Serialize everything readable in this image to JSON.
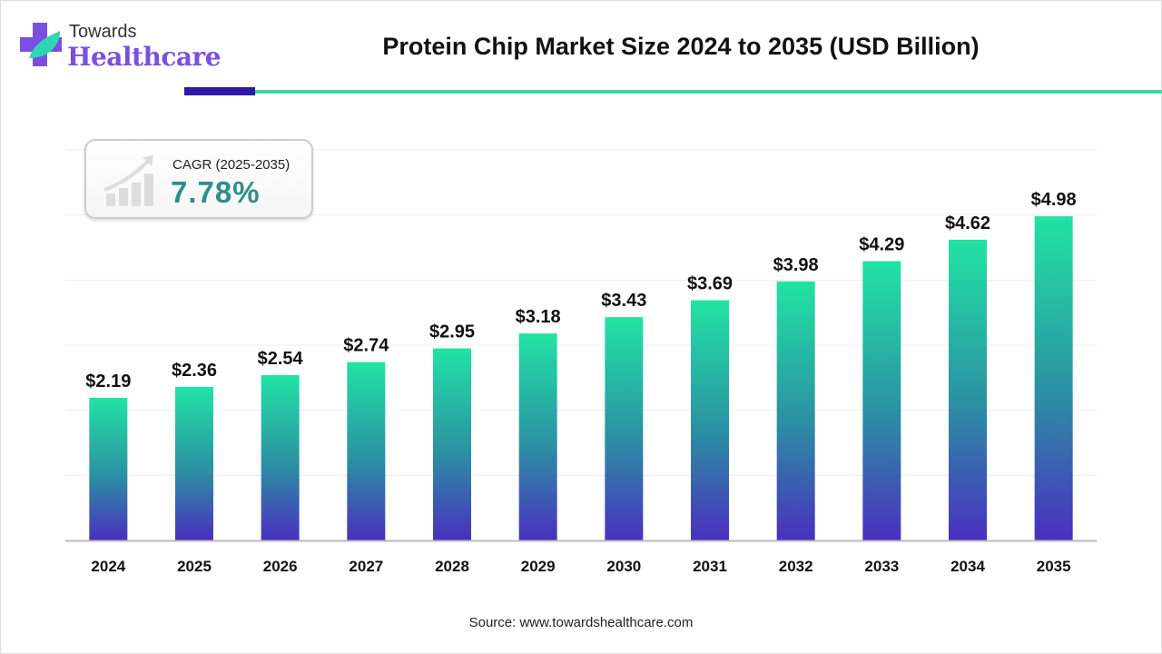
{
  "logo": {
    "line1": "Towards",
    "line2": "Healthcare"
  },
  "colors": {
    "bar_top": "#22e3a4",
    "bar_mid": "#2b8fa3",
    "bar_bottom": "#4a2fbf",
    "accent_dark": "#2f1aa8",
    "accent_green": "#3dd6a0",
    "cagr_value": "#2e8f88"
  },
  "cagr": {
    "label": "CAGR (2025-2035)",
    "value": "7.78%",
    "icon": "growth-chart-arrow-icon"
  },
  "source": "Source: www.towardshealthcare.com",
  "chart_data": {
    "type": "bar",
    "title": "Protein Chip Market Size 2024 to 2035 (USD Billion)",
    "xlabel": "",
    "ylabel": "",
    "categories": [
      "2024",
      "2025",
      "2026",
      "2027",
      "2028",
      "2029",
      "2030",
      "2031",
      "2032",
      "2033",
      "2034",
      "2035"
    ],
    "values": [
      2.19,
      2.36,
      2.54,
      2.74,
      2.95,
      3.18,
      3.43,
      3.69,
      3.98,
      4.29,
      4.62,
      4.98
    ],
    "data_labels": [
      "$2.19",
      "$2.36",
      "$2.54",
      "$2.74",
      "$2.95",
      "$3.18",
      "$3.43",
      "$3.69",
      "$3.98",
      "$4.29",
      "$4.62",
      "$4.98"
    ],
    "ylim": [
      0,
      6
    ],
    "grid": true,
    "y_axis_visible": false
  }
}
